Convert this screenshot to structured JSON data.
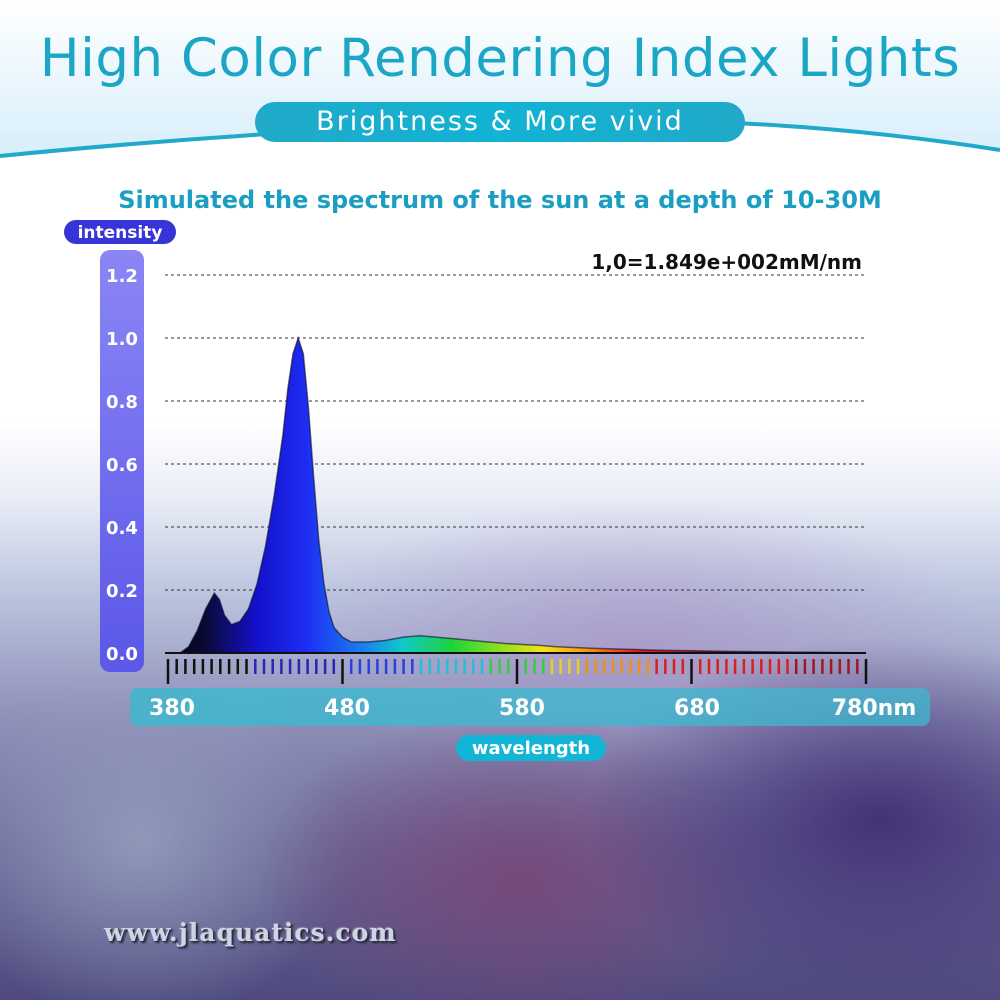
{
  "header": {
    "title": "High Color Rendering Index Lights",
    "subtitle": "Brightness & More vivid"
  },
  "watermark": "www.jlaquatics.com",
  "colors": {
    "accent": "#1aa6c4",
    "intensity_bar": "#5b57e8",
    "peak_fill": "#1a1adf"
  },
  "chart_data": {
    "type": "area",
    "title": "Simulated the spectrum of the sun at a depth of 10-30M",
    "annotation": "1,0=1.849e+002mM/nm",
    "ylabel": "intensity",
    "xlabel": "wavelength",
    "xlim": [
      380,
      780
    ],
    "ylim": [
      0,
      1.2
    ],
    "x_ticks": [
      "380",
      "480",
      "580",
      "680",
      "780nm"
    ],
    "y_ticks": [
      "0.0",
      "0.2",
      "0.4",
      "0.6",
      "0.8",
      "1.0",
      "1.2"
    ],
    "grid": true,
    "x": [
      380,
      385,
      390,
      395,
      400,
      403,
      406,
      410,
      415,
      420,
      425,
      430,
      435,
      440,
      443,
      446,
      449,
      452,
      455,
      458,
      461,
      464,
      467,
      470,
      475,
      480,
      490,
      500,
      510,
      520,
      530,
      540,
      550,
      560,
      570,
      580,
      590,
      600,
      620,
      640,
      660,
      680,
      700,
      720,
      740,
      760,
      780
    ],
    "y": [
      0.0,
      0.02,
      0.07,
      0.14,
      0.19,
      0.17,
      0.12,
      0.09,
      0.1,
      0.14,
      0.22,
      0.34,
      0.5,
      0.69,
      0.84,
      0.95,
      1.0,
      0.95,
      0.78,
      0.56,
      0.36,
      0.22,
      0.13,
      0.08,
      0.05,
      0.035,
      0.035,
      0.04,
      0.05,
      0.055,
      0.05,
      0.045,
      0.04,
      0.035,
      0.03,
      0.027,
      0.024,
      0.02,
      0.015,
      0.012,
      0.009,
      0.007,
      0.005,
      0.004,
      0.003,
      0.002,
      0.0
    ]
  }
}
